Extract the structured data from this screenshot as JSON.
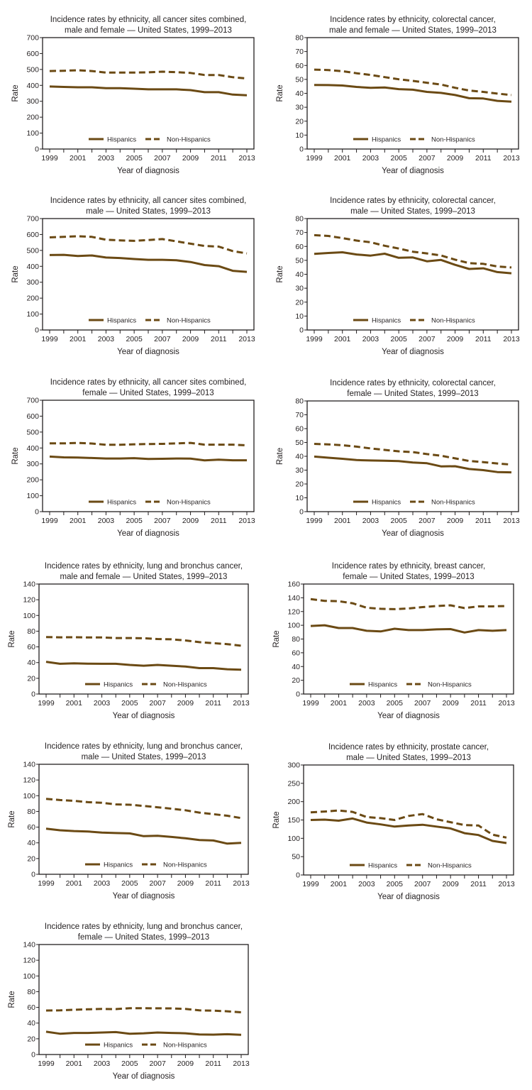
{
  "colors": {
    "line": "#6b4a14",
    "axis": "#231f20"
  },
  "legend": {
    "hispanics": "Hispanics",
    "non_hispanics": "Non-Hispanics"
  },
  "xlabel": "Year of diagnosis",
  "ylabel": "Rate",
  "chart_data": [
    {
      "type": "line",
      "id": "all-sites-both",
      "title": [
        "Incidence rates by ethnicity, all cancer sites combined,",
        "male and female — United States, 1999–2013"
      ],
      "x": [
        1999,
        2000,
        2001,
        2002,
        2003,
        2004,
        2005,
        2006,
        2007,
        2008,
        2009,
        2010,
        2011,
        2012,
        2013
      ],
      "xticks": [
        "1999",
        "2001",
        "2003",
        "2005",
        "2007",
        "2009",
        "2011",
        "2013"
      ],
      "ylim": [
        0,
        700
      ],
      "yticks": [
        "0",
        "100",
        "200",
        "300",
        "400",
        "500",
        "600",
        "700"
      ],
      "series": [
        {
          "name": "Hispanics",
          "values": [
            393,
            390,
            388,
            388,
            382,
            382,
            379,
            375,
            375,
            375,
            370,
            357,
            357,
            342,
            338
          ]
        },
        {
          "name": "Non-Hispanics",
          "values": [
            490,
            492,
            495,
            490,
            480,
            480,
            480,
            482,
            486,
            483,
            478,
            465,
            465,
            451,
            443
          ]
        }
      ]
    },
    {
      "type": "line",
      "id": "colorectal-both",
      "title": [
        "Incidence rates by ethnicity, colorectal cancer,",
        "male and female — United States, 1999–2013"
      ],
      "x": [
        1999,
        2000,
        2001,
        2002,
        2003,
        2004,
        2005,
        2006,
        2007,
        2008,
        2009,
        2010,
        2011,
        2012,
        2013
      ],
      "xticks": [
        "1999",
        "2001",
        "2003",
        "2005",
        "2007",
        "2009",
        "2011",
        "2013"
      ],
      "ylim": [
        0,
        80
      ],
      "yticks": [
        "0",
        "10",
        "20",
        "30",
        "40",
        "50",
        "60",
        "70",
        "80"
      ],
      "series": [
        {
          "name": "Hispanics",
          "values": [
            46,
            45.9,
            45.6,
            44.6,
            44,
            44.2,
            43,
            42.6,
            41,
            40.3,
            38.8,
            36.5,
            36.3,
            34.6,
            34
          ]
        },
        {
          "name": "Non-Hispanics",
          "values": [
            57,
            56.7,
            55.9,
            54.4,
            53.2,
            51.6,
            50.1,
            48.9,
            47.6,
            46.3,
            44,
            42,
            41,
            39.8,
            38.8
          ]
        }
      ]
    },
    {
      "type": "line",
      "id": "all-sites-male",
      "title": [
        "Incidence rates by ethnicity, all cancer sites combined,",
        "male — United States, 1999–2013"
      ],
      "x": [
        1999,
        2000,
        2001,
        2002,
        2003,
        2004,
        2005,
        2006,
        2007,
        2008,
        2009,
        2010,
        2011,
        2012,
        2013
      ],
      "xticks": [
        "1999",
        "2001",
        "2003",
        "2005",
        "2007",
        "2009",
        "2011",
        "2013"
      ],
      "ylim": [
        0,
        700
      ],
      "yticks": [
        "0",
        "100",
        "200",
        "300",
        "400",
        "500",
        "600",
        "700"
      ],
      "series": [
        {
          "name": "Hispanics",
          "values": [
            471,
            472,
            465,
            468,
            455,
            452,
            446,
            441,
            441,
            438,
            427,
            408,
            401,
            372,
            365
          ]
        },
        {
          "name": "Non-Hispanics",
          "values": [
            582,
            585,
            589,
            585,
            567,
            563,
            560,
            565,
            571,
            557,
            542,
            528,
            524,
            496,
            481
          ]
        }
      ]
    },
    {
      "type": "line",
      "id": "colorectal-male",
      "title": [
        "Incidence rates by ethnicity, colorectal cancer,",
        "male — United States, 1999–2013"
      ],
      "x": [
        1999,
        2000,
        2001,
        2002,
        2003,
        2004,
        2005,
        2006,
        2007,
        2008,
        2009,
        2010,
        2011,
        2012,
        2013
      ],
      "xticks": [
        "1999",
        "2001",
        "2003",
        "2005",
        "2007",
        "2009",
        "2011",
        "2013"
      ],
      "ylim": [
        0,
        80
      ],
      "yticks": [
        "0",
        "10",
        "20",
        "30",
        "40",
        "50",
        "60",
        "70",
        "80"
      ],
      "series": [
        {
          "name": "Hispanics",
          "values": [
            54.7,
            55.3,
            55.8,
            54.2,
            53.4,
            54.8,
            51.8,
            52.1,
            49.3,
            50.3,
            46.8,
            43.8,
            44.3,
            41.6,
            40.7
          ]
        },
        {
          "name": "Non-Hispanics",
          "values": [
            68.1,
            67.5,
            66,
            64.2,
            63,
            60.5,
            58.5,
            56.2,
            55,
            53.5,
            50.5,
            48,
            47.5,
            45.6,
            44.9
          ]
        }
      ]
    },
    {
      "type": "line",
      "id": "all-sites-female",
      "title": [
        "Incidence rates by ethnicity, all cancer sites combined,",
        "female — United States, 1999–2013"
      ],
      "x": [
        1999,
        2000,
        2001,
        2002,
        2003,
        2004,
        2005,
        2006,
        2007,
        2008,
        2009,
        2010,
        2011,
        2012,
        2013
      ],
      "xticks": [
        "1999",
        "2001",
        "2003",
        "2005",
        "2007",
        "2009",
        "2011",
        "2013"
      ],
      "ylim": [
        0,
        700
      ],
      "yticks": [
        "0",
        "100",
        "200",
        "300",
        "400",
        "500",
        "600",
        "700"
      ],
      "series": [
        {
          "name": "Hispanics",
          "values": [
            346,
            341,
            340,
            337,
            334,
            334,
            336,
            331,
            332,
            334,
            333,
            322,
            327,
            323,
            323
          ]
        },
        {
          "name": "Non-Hispanics",
          "values": [
            429,
            429,
            432,
            428,
            420,
            420,
            423,
            425,
            426,
            429,
            432,
            421,
            421,
            421,
            417
          ]
        }
      ]
    },
    {
      "type": "line",
      "id": "colorectal-female",
      "title": [
        "Incidence rates by ethnicity, colorectal cancer,",
        "female — United States, 1999–2013"
      ],
      "x": [
        1999,
        2000,
        2001,
        2002,
        2003,
        2004,
        2005,
        2006,
        2007,
        2008,
        2009,
        2010,
        2011,
        2012,
        2013
      ],
      "xticks": [
        "1999",
        "2001",
        "2003",
        "2005",
        "2007",
        "2009",
        "2011",
        "2013"
      ],
      "ylim": [
        0,
        80
      ],
      "yticks": [
        "0",
        "10",
        "20",
        "30",
        "40",
        "50",
        "60",
        "70",
        "80"
      ],
      "series": [
        {
          "name": "Hispanics",
          "values": [
            39.8,
            39,
            38.2,
            37.3,
            37,
            36.8,
            36.5,
            35.5,
            35,
            32.7,
            32.8,
            30.8,
            30,
            28.6,
            28.4
          ]
        },
        {
          "name": "Non-Hispanics",
          "values": [
            49,
            48.6,
            48,
            47,
            45.7,
            44.6,
            43.6,
            43,
            41.6,
            40.4,
            38.5,
            36.6,
            35.8,
            34.8,
            34
          ]
        }
      ]
    },
    {
      "type": "line",
      "id": "lung-both",
      "title": [
        "Incidence rates by ethnicity, lung and bronchus cancer,",
        "male and female — United States, 1999–2013"
      ],
      "x": [
        1999,
        2000,
        2001,
        2002,
        2003,
        2004,
        2005,
        2006,
        2007,
        2008,
        2009,
        2010,
        2011,
        2012,
        2013
      ],
      "xticks": [
        "1999",
        "2001",
        "2003",
        "2005",
        "2007",
        "2009",
        "2011",
        "2013"
      ],
      "ylim": [
        0,
        140
      ],
      "yticks": [
        "0",
        "20",
        "40",
        "60",
        "80",
        "100",
        "120",
        "140"
      ],
      "series": [
        {
          "name": "Hispanics",
          "values": [
            41,
            38.5,
            39,
            38.7,
            38.5,
            38.5,
            37,
            36,
            37,
            36,
            35,
            33,
            33,
            31.5,
            31
          ]
        },
        {
          "name": "Non-Hispanics",
          "values": [
            72.5,
            72.2,
            72.3,
            72,
            72,
            71.3,
            71.3,
            71,
            70,
            69.6,
            68.2,
            66,
            64.8,
            63.5,
            61.5
          ]
        }
      ]
    },
    {
      "type": "line",
      "id": "breast-female",
      "title": [
        "Incidence rates by ethnicity, breast cancer,",
        "female — United States, 1999–2013"
      ],
      "x": [
        1999,
        2000,
        2001,
        2002,
        2003,
        2004,
        2005,
        2006,
        2007,
        2008,
        2009,
        2010,
        2011,
        2012,
        2013
      ],
      "xticks": [
        "1999",
        "2001",
        "2003",
        "2005",
        "2007",
        "2009",
        "2011",
        "2013"
      ],
      "ylim": [
        0,
        160
      ],
      "yticks": [
        "0",
        "20",
        "40",
        "60",
        "80",
        "100",
        "120",
        "140",
        "160"
      ],
      "series": [
        {
          "name": "Hispanics",
          "values": [
            99,
            100,
            96,
            96,
            92,
            91,
            95,
            93,
            93,
            94,
            94.5,
            89.5,
            93,
            92,
            93
          ]
        },
        {
          "name": "Non-Hispanics",
          "values": [
            138,
            135.5,
            135,
            132,
            125.5,
            124,
            123.5,
            124.5,
            126.5,
            128,
            129,
            125,
            127.5,
            127.5,
            128
          ]
        }
      ]
    },
    {
      "type": "line",
      "id": "lung-male",
      "title": [
        "Incidence rates by ethnicity, lung and bronchus cancer,",
        "male — United States, 1999–2013"
      ],
      "x": [
        1999,
        2000,
        2001,
        2002,
        2003,
        2004,
        2005,
        2006,
        2007,
        2008,
        2009,
        2010,
        2011,
        2012,
        2013
      ],
      "xticks": [
        "1999",
        "2001",
        "2003",
        "2005",
        "2007",
        "2009",
        "2011",
        "2013"
      ],
      "ylim": [
        0,
        140
      ],
      "yticks": [
        "0",
        "20",
        "40",
        "60",
        "80",
        "100",
        "120",
        "140"
      ],
      "series": [
        {
          "name": "Hispanics",
          "values": [
            58,
            56,
            55,
            54.5,
            53,
            52.5,
            52,
            48.5,
            49,
            47.5,
            45.8,
            43.5,
            43,
            39,
            40
          ]
        },
        {
          "name": "Non-Hispanics",
          "values": [
            96,
            94.5,
            93.5,
            91.8,
            91,
            89,
            88.5,
            87,
            85.3,
            83.5,
            81.5,
            78.5,
            76.5,
            74.5,
            71.5
          ]
        }
      ]
    },
    {
      "type": "line",
      "id": "prostate-male",
      "title": [
        "Incidence rates by ethnicity, prostate cancer,",
        "male — United States, 1999–2013"
      ],
      "x": [
        1999,
        2000,
        2001,
        2002,
        2003,
        2004,
        2005,
        2006,
        2007,
        2008,
        2009,
        2010,
        2011,
        2012,
        2013
      ],
      "xticks": [
        "1999",
        "2001",
        "2003",
        "2005",
        "2007",
        "2009",
        "2011",
        "2013"
      ],
      "ylim": [
        0,
        300
      ],
      "yticks": [
        "0",
        "50",
        "100",
        "150",
        "200",
        "250",
        "300"
      ],
      "series": [
        {
          "name": "Hispanics",
          "values": [
            150,
            151,
            148,
            154,
            143,
            138,
            132,
            135,
            137,
            132,
            127,
            114,
            109,
            93,
            87
          ]
        },
        {
          "name": "Non-Hispanics",
          "values": [
            171,
            173,
            176,
            172,
            158,
            155,
            150,
            161,
            166,
            152,
            144,
            136,
            135,
            110,
            102
          ]
        }
      ]
    },
    {
      "type": "line",
      "id": "lung-female",
      "title": [
        "Incidence rates by ethnicity, lung and bronchus cancer,",
        "female — United States, 1999–2013"
      ],
      "x": [
        1999,
        2000,
        2001,
        2002,
        2003,
        2004,
        2005,
        2006,
        2007,
        2008,
        2009,
        2010,
        2011,
        2012,
        2013
      ],
      "xticks": [
        "1999",
        "2001",
        "2003",
        "2005",
        "2007",
        "2009",
        "2011",
        "2013"
      ],
      "ylim": [
        0,
        140
      ],
      "yticks": [
        "0",
        "20",
        "40",
        "60",
        "80",
        "100",
        "120",
        "140"
      ],
      "series": [
        {
          "name": "Hispanics",
          "values": [
            29,
            26.5,
            27.5,
            27.5,
            28,
            28.5,
            26.5,
            27,
            28,
            27.5,
            27,
            25.5,
            25.3,
            25.8,
            25
          ]
        },
        {
          "name": "Non-Hispanics",
          "values": [
            56,
            56.2,
            57,
            57.5,
            58,
            57.8,
            59,
            59,
            58.8,
            58.7,
            58,
            56.2,
            55.8,
            55,
            53.7
          ]
        }
      ]
    }
  ]
}
